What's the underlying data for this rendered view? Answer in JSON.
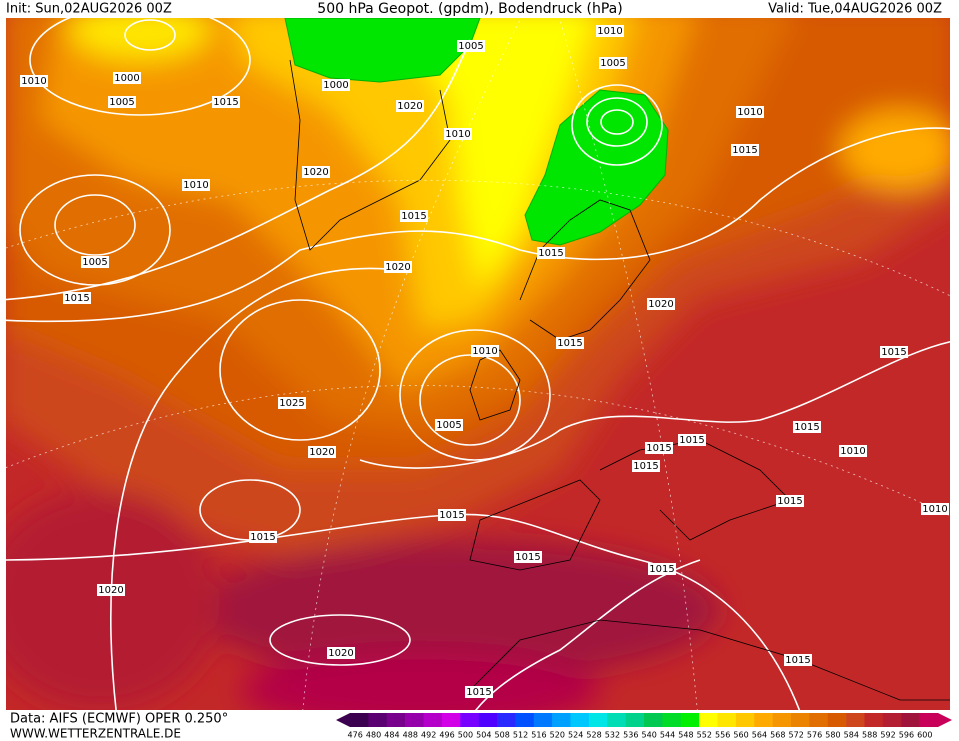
{
  "header": {
    "init": "Init: Sun,02AUG2026 00Z",
    "title": "500 hPa Geopot. (gpdm), Bodendruck (hPa)",
    "valid": "Valid: Tue,04AUG2026 00Z"
  },
  "map": {
    "isobar_labels": [
      "1005",
      "1010",
      "1010",
      "1000",
      "1005",
      "1015",
      "1000",
      "1005",
      "1020",
      "1010",
      "1010",
      "1015",
      "1010",
      "1020",
      "1015",
      "1005",
      "1020",
      "1015",
      "1015",
      "1020",
      "1015",
      "1010",
      "1015",
      "1025",
      "1005",
      "1015",
      "1015",
      "1015",
      "1010",
      "1020",
      "1015",
      "1015",
      "1015",
      "1010",
      "1015",
      "1015",
      "1015",
      "1020",
      "1020",
      "1015",
      "1015"
    ]
  },
  "footer": {
    "source": "Data: AIFS (ECMWF) OPER 0.250°",
    "site": "WWW.WETTERZENTRALE.DE"
  },
  "legend": {
    "values": [
      476,
      480,
      484,
      488,
      492,
      496,
      500,
      504,
      508,
      512,
      516,
      520,
      524,
      528,
      532,
      536,
      540,
      544,
      548,
      552,
      556,
      560,
      564,
      568,
      572,
      576,
      580,
      584,
      588,
      592,
      596,
      600
    ],
    "colors": [
      "#3c0050",
      "#5a0070",
      "#78008c",
      "#9600aa",
      "#b400c8",
      "#d200e6",
      "#7800ff",
      "#5000ff",
      "#2828ff",
      "#0050ff",
      "#0078ff",
      "#00a0ff",
      "#00c8ff",
      "#00e6e6",
      "#00dcb4",
      "#00d28c",
      "#00c850",
      "#00dc28",
      "#00f000",
      "#ffff00",
      "#ffe600",
      "#ffc800",
      "#ffaa00",
      "#f59600",
      "#eb8200",
      "#e16e00",
      "#d75a00",
      "#cd461e",
      "#c32828",
      "#b41e32",
      "#a0143c",
      "#c8005a"
    ]
  }
}
